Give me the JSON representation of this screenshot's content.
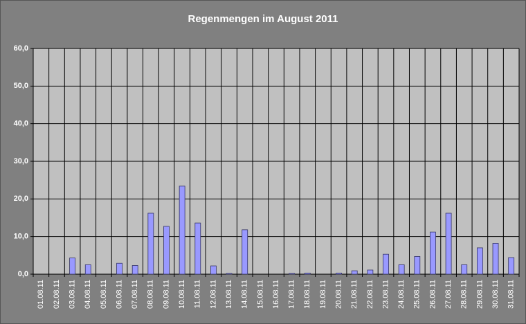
{
  "chart_data": {
    "type": "bar",
    "title": "Regenmengen im August 2011",
    "categories": [
      "01.08.11",
      "02.08.11",
      "03.08.11",
      "04.08.11",
      "05.08.11",
      "06.08.11",
      "07.08.11",
      "08.08.11",
      "09.08.11",
      "10.08.11",
      "11.08.11",
      "12.08.11",
      "13.08.11",
      "14.08.11",
      "15.08.11",
      "16.08.11",
      "17.08.11",
      "18.08.11",
      "19.08.11",
      "20.08.11",
      "21.08.11",
      "22.08.11",
      "23.08.11",
      "24.08.11",
      "25.08.11",
      "26.08.11",
      "27.08.11",
      "28.08.11",
      "29.08.11",
      "30.08.11",
      "31.08.11"
    ],
    "values": [
      0,
      0,
      4.3,
      2.5,
      0,
      2.9,
      2.3,
      16.2,
      12.7,
      23.4,
      13.6,
      2.2,
      0.2,
      11.8,
      0,
      0,
      0.2,
      0.3,
      0,
      0.3,
      0.9,
      1.1,
      5.3,
      2.5,
      4.7,
      11.2,
      16.2,
      2.5,
      7.0,
      8.2,
      4.4
    ],
    "color": "#9999ff",
    "ylim": [
      0,
      60
    ],
    "yticks": [
      {
        "value": 0,
        "label": "0,0"
      },
      {
        "value": 10,
        "label": "10,0"
      },
      {
        "value": 20,
        "label": "20,0"
      },
      {
        "value": 30,
        "label": "30,0"
      },
      {
        "value": 40,
        "label": "40,0"
      },
      {
        "value": 50,
        "label": "50,0"
      },
      {
        "value": 60,
        "label": "60,0"
      }
    ],
    "grid": true
  }
}
